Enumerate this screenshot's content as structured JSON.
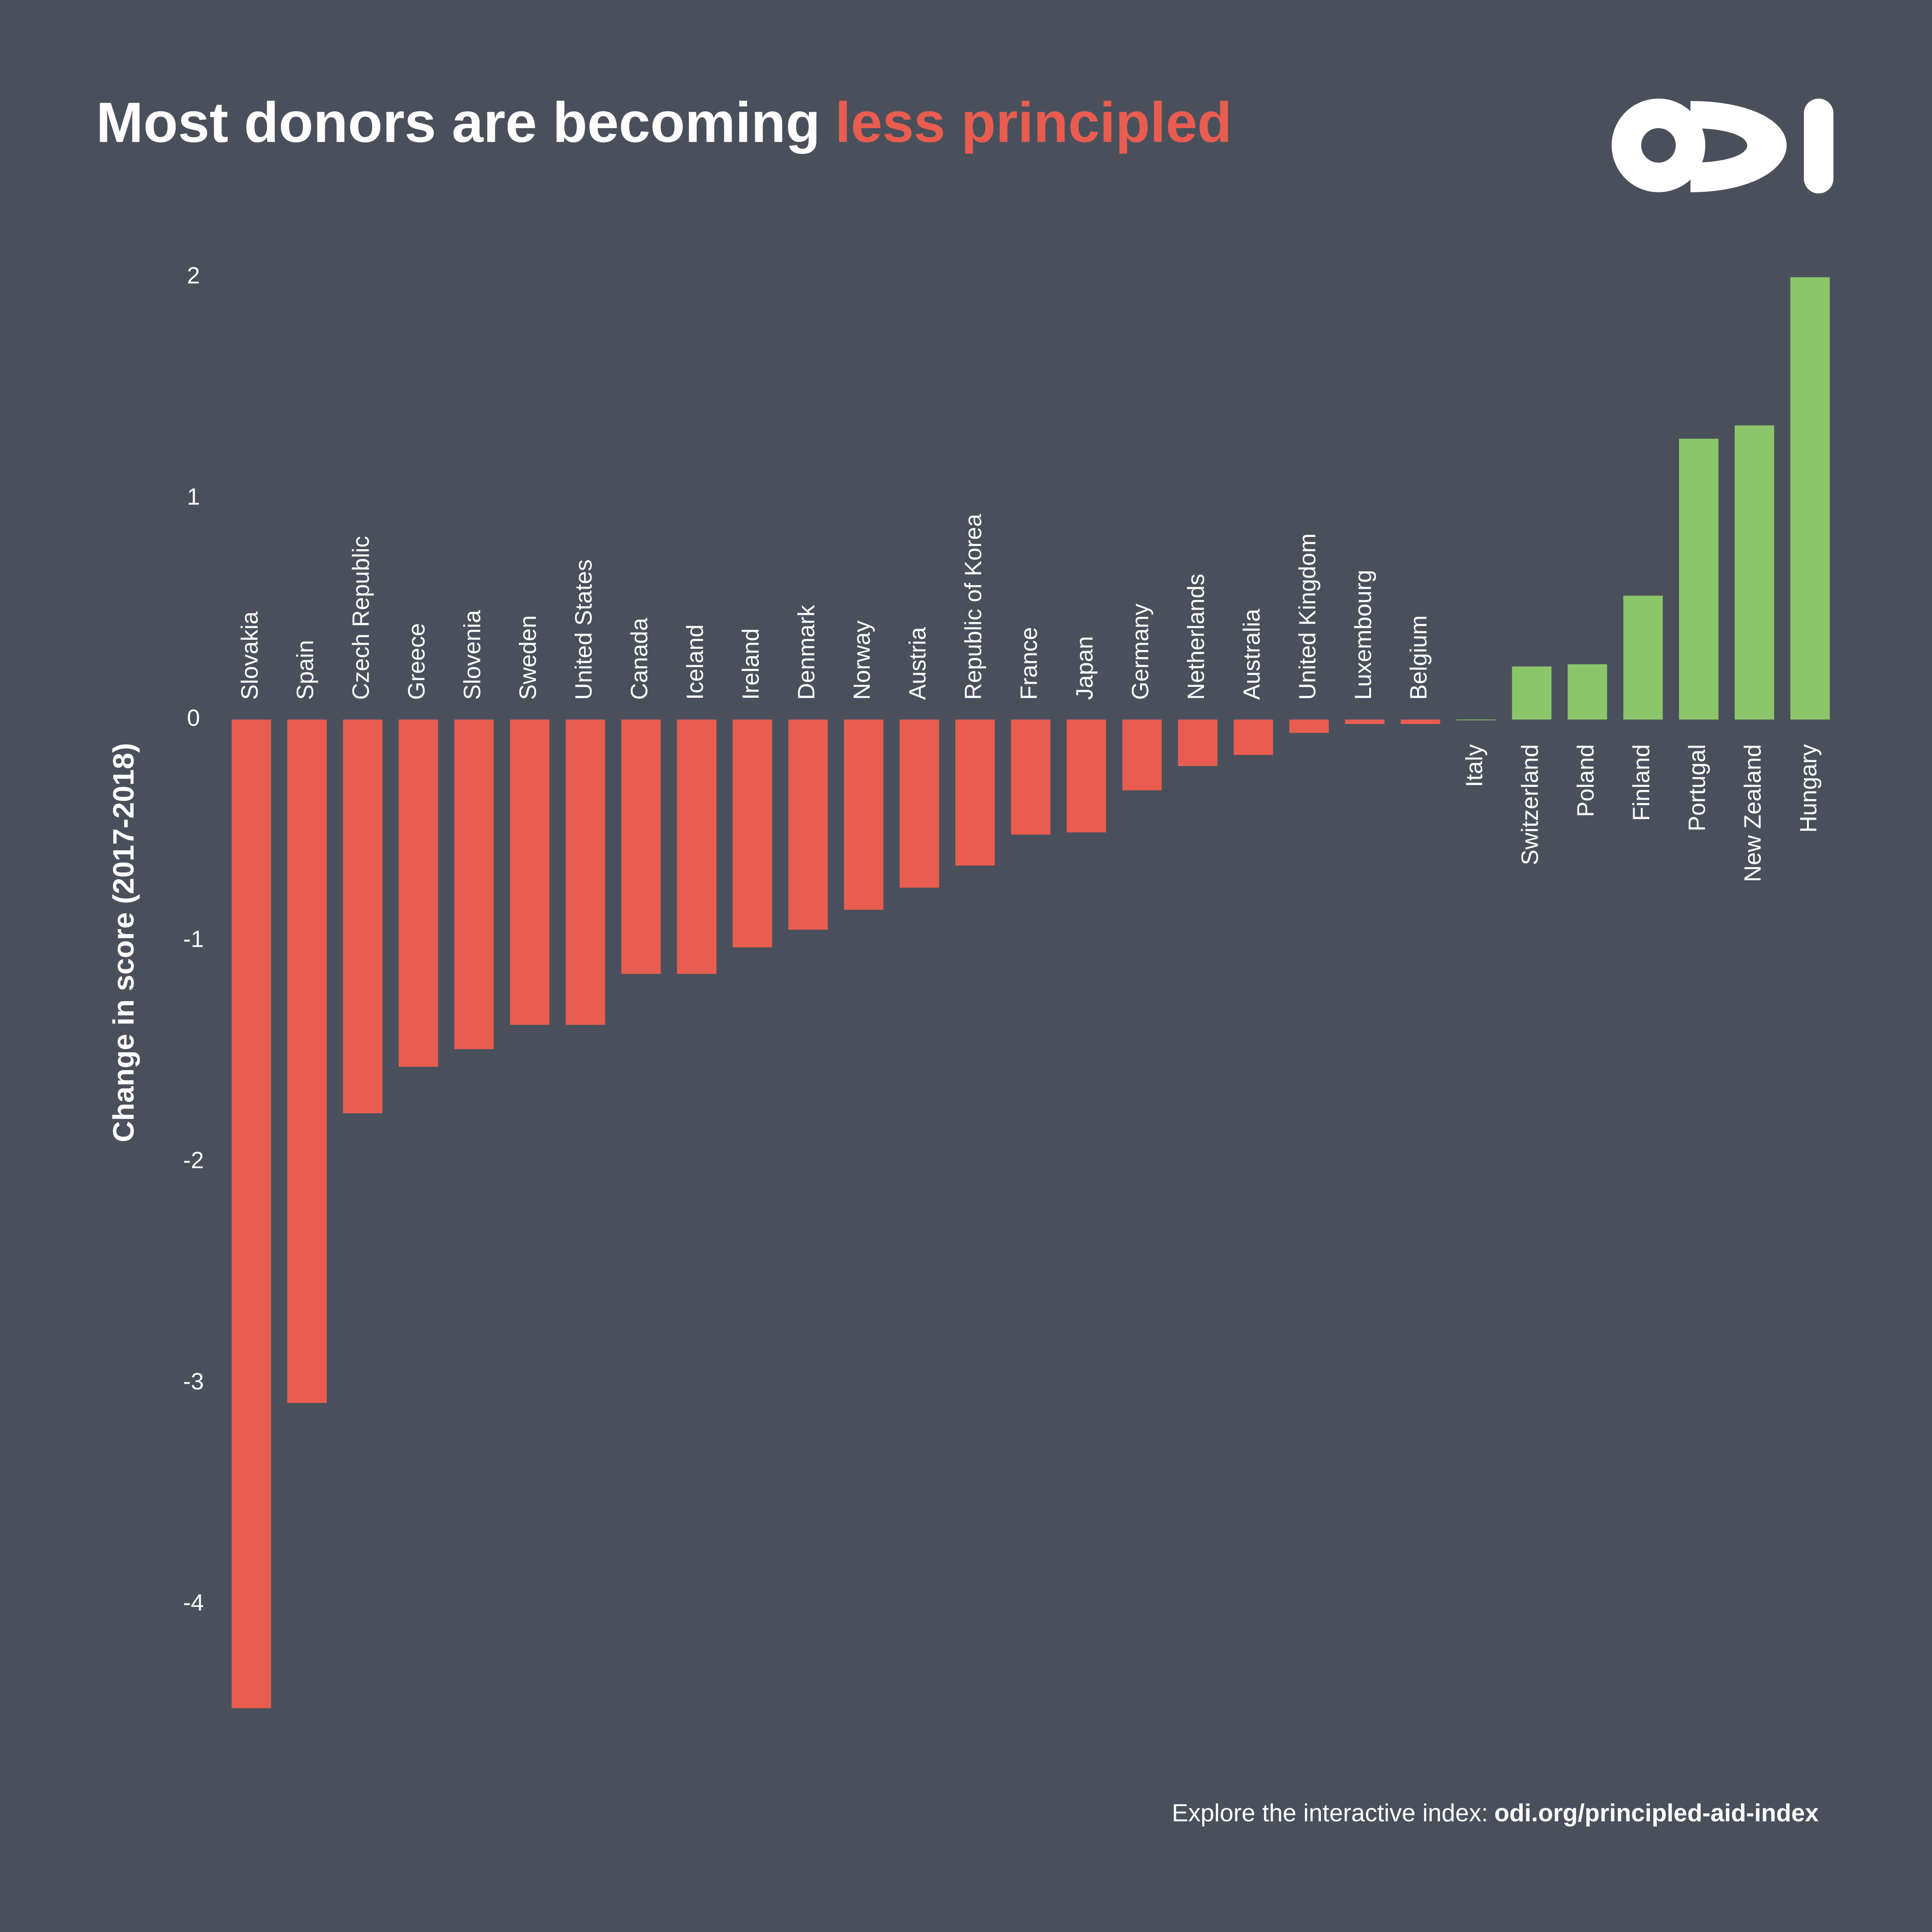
{
  "chart_data": {
    "type": "bar",
    "title": "Most donors are becoming",
    "title_highlight": "less principled",
    "y_label": "Change in score (2017-2018)",
    "footer": "Explore the interactive index:",
    "footer_link": "odi.org/principled-aid-index",
    "categories": [
      "Slovakia",
      "Spain",
      "Czech Republic",
      "Greece",
      "Slovenia",
      "Sweden",
      "United States",
      "Canada",
      "Iceland",
      "Ireland",
      "Denmark",
      "Norway",
      "Austria",
      "Republic of Korea",
      "France",
      "Japan",
      "Germany",
      "Netherlands",
      "Australia",
      "United Kingdom",
      "Luxembourg",
      "Belgium",
      "Italy",
      "Switzerland",
      "Poland",
      "Finland",
      "Portugal",
      "New Zealand",
      "Hungary"
    ],
    "values": [
      -4.47,
      -3.09,
      -1.78,
      -1.57,
      -1.49,
      -1.38,
      -1.38,
      -1.15,
      -1.15,
      -1.03,
      -0.95,
      -0.86,
      -0.76,
      -0.66,
      -0.52,
      -0.51,
      -0.32,
      -0.21,
      -0.16,
      -0.06,
      -0.02,
      -0.02,
      0,
      0.24,
      0.25,
      0.56,
      1.27,
      1.33,
      2.0
    ],
    "negative_color": "#e85d50",
    "positive_color": "#8cc66b",
    "ylim": [
      -4.5,
      2.0
    ],
    "yticks": [
      -4,
      -3,
      -2,
      -1,
      0,
      1,
      2
    ],
    "grid": false
  }
}
